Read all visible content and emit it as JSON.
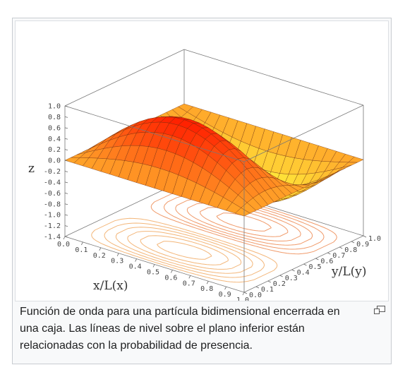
{
  "caption": "Función de onda para una partícula bidimensional encerrada en una caja. Las líneas de nivel sobre el plano inferior están relacionadas con la probabilidad de presencia.",
  "icons": {
    "enlarge": "magnify-icon"
  },
  "colors": {
    "surface_low": "#ffa62a",
    "surface_high": "#ff2000",
    "surface_bright": "#ffff40",
    "contour": "#f4a070"
  },
  "chart_data": {
    "type": "surface3d",
    "function": "z = sin(pi*x) * sin(2*pi*y)",
    "title": "",
    "xlabel": "x/L(x)",
    "ylabel": "y/L(y)",
    "zlabel": "z",
    "xlim": [
      0,
      1
    ],
    "ylim": [
      0,
      1
    ],
    "zlim": [
      -1.4,
      1.0
    ],
    "x_ticks": [
      "0.0",
      "0.1",
      "0.2",
      "0.3",
      "0.4",
      "0.5",
      "0.6",
      "0.7",
      "0.8",
      "0.9",
      "1.0"
    ],
    "y_ticks": [
      "0.0",
      "0.1",
      "0.2",
      "0.3",
      "0.4",
      "0.5",
      "0.6",
      "0.7",
      "0.8",
      "0.9",
      "1.0"
    ],
    "z_ticks": [
      "1.0",
      "0.8",
      "0.6",
      "0.4",
      "0.2",
      "0.0",
      "-0.2",
      "-0.4",
      "-0.6",
      "-0.8",
      "-1.0",
      "-1.2",
      "-1.4"
    ],
    "contours_on_base": true,
    "grid": false
  }
}
